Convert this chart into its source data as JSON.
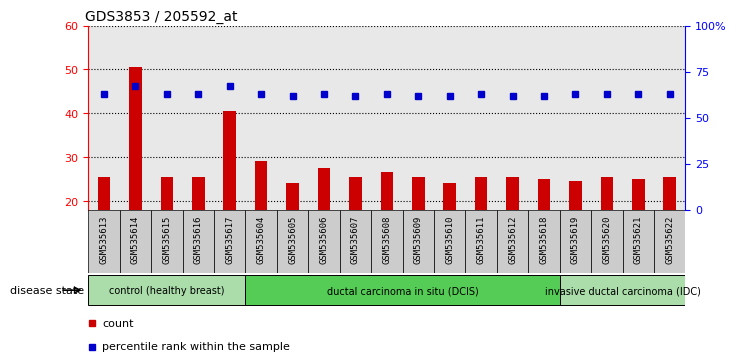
{
  "title": "GDS3853 / 205592_at",
  "samples": [
    "GSM535613",
    "GSM535614",
    "GSM535615",
    "GSM535616",
    "GSM535617",
    "GSM535604",
    "GSM535605",
    "GSM535606",
    "GSM535607",
    "GSM535608",
    "GSM535609",
    "GSM535610",
    "GSM535611",
    "GSM535612",
    "GSM535618",
    "GSM535619",
    "GSM535620",
    "GSM535621",
    "GSM535622"
  ],
  "counts": [
    25.5,
    50.5,
    25.5,
    25.5,
    40.5,
    29.0,
    24.0,
    27.5,
    25.5,
    26.5,
    25.5,
    24.0,
    25.5,
    25.5,
    25.0,
    24.5,
    25.5,
    25.0,
    25.5
  ],
  "percentiles": [
    63,
    67,
    63,
    63,
    67,
    63,
    62,
    63,
    62,
    63,
    62,
    62,
    63,
    62,
    62,
    63,
    63,
    63,
    63
  ],
  "bar_color": "#cc0000",
  "dot_color": "#0000cc",
  "ylim_left": [
    18,
    60
  ],
  "ylim_right": [
    0,
    100
  ],
  "yticks_left": [
    20,
    30,
    40,
    50,
    60
  ],
  "yticks_right": [
    0,
    25,
    50,
    75,
    100
  ],
  "ytick_labels_right": [
    "0",
    "25",
    "50",
    "75",
    "100%"
  ],
  "groups": [
    {
      "label": "control (healthy breast)",
      "start": 0,
      "end": 5,
      "color": "#aaddaa"
    },
    {
      "label": "ductal carcinoma in situ (DCIS)",
      "start": 5,
      "end": 15,
      "color": "#55cc55"
    },
    {
      "label": "invasive ductal carcinoma (IDC)",
      "start": 15,
      "end": 19,
      "color": "#aaddaa"
    }
  ],
  "disease_state_label": "disease state",
  "legend_count_label": "count",
  "legend_pct_label": "percentile rank within the sample",
  "cell_bg": "#cccccc",
  "plot_bg": "#ffffff"
}
